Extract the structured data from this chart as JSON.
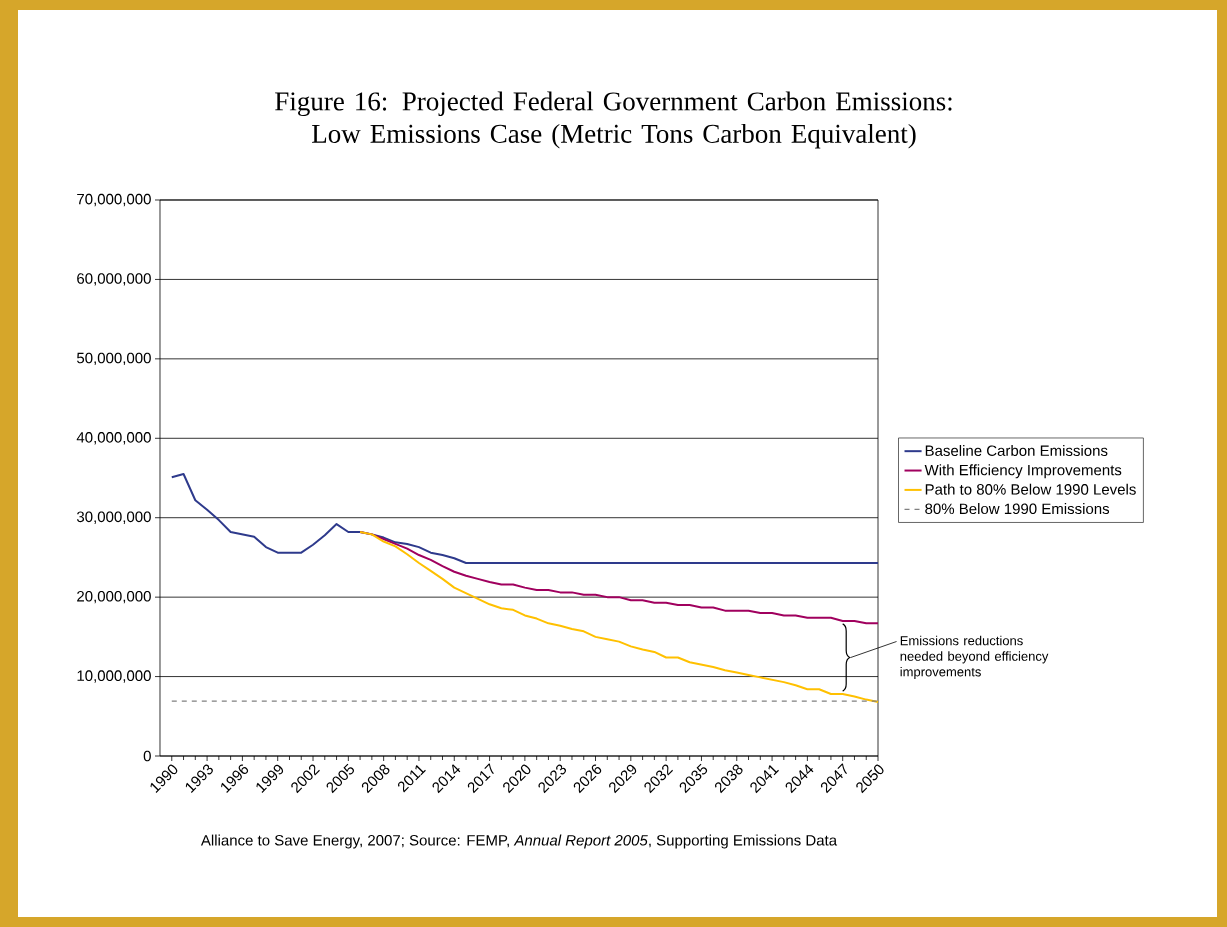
{
  "chart_data": {
    "type": "line",
    "title": "Figure 16: Projected Federal Government Carbon Emissions: Low Emissions Case (Metric Tons Carbon Equivalent)",
    "x": [
      1990,
      1991,
      1992,
      1993,
      1994,
      1995,
      1996,
      1997,
      1998,
      1999,
      2000,
      2001,
      2002,
      2003,
      2004,
      2005,
      2006,
      2007,
      2008,
      2009,
      2010,
      2011,
      2012,
      2013,
      2014,
      2015,
      2016,
      2017,
      2018,
      2019,
      2020,
      2021,
      2022,
      2023,
      2024,
      2025,
      2026,
      2027,
      2028,
      2029,
      2030,
      2031,
      2032,
      2033,
      2034,
      2035,
      2036,
      2037,
      2038,
      2039,
      2040,
      2041,
      2042,
      2043,
      2044,
      2045,
      2046,
      2047,
      2048,
      2049,
      2050
    ],
    "series": [
      {
        "name": "Baseline Carbon Emissions",
        "color": "#2e3a8c",
        "values": [
          35100000,
          35500000,
          32200000,
          31000000,
          29700000,
          28200000,
          27900000,
          27600000,
          26300000,
          25600000,
          25600000,
          25600000,
          26600000,
          27800000,
          29200000,
          28200000,
          28200000,
          27900000,
          27500000,
          26900000,
          26700000,
          26300000,
          25600000,
          25300000,
          24900000,
          24300000,
          24300000,
          24300000,
          24300000,
          24300000,
          24300000,
          24300000,
          24300000,
          24300000,
          24300000,
          24300000,
          24300000,
          24300000,
          24300000,
          24300000,
          24300000,
          24300000,
          24300000,
          24300000,
          24300000,
          24300000,
          24300000,
          24300000,
          24300000,
          24300000,
          24300000,
          24300000,
          24300000,
          24300000,
          24300000,
          24300000,
          24300000,
          24300000,
          24300000,
          24300000,
          24300000
        ]
      },
      {
        "name": "With Efficiency Improvements",
        "color": "#a0005e",
        "values": [
          null,
          null,
          null,
          null,
          null,
          null,
          null,
          null,
          null,
          null,
          null,
          null,
          null,
          null,
          null,
          null,
          28200000,
          27900000,
          27300000,
          26700000,
          26100000,
          25300000,
          24700000,
          23900000,
          23200000,
          22700000,
          22300000,
          21900000,
          21600000,
          21600000,
          21200000,
          20900000,
          20900000,
          20600000,
          20600000,
          20300000,
          20300000,
          20000000,
          20000000,
          19600000,
          19600000,
          19300000,
          19300000,
          19000000,
          19000000,
          18700000,
          18700000,
          18300000,
          18300000,
          18300000,
          18000000,
          18000000,
          17700000,
          17700000,
          17400000,
          17400000,
          17400000,
          17000000,
          17000000,
          16700000,
          16700000
        ]
      },
      {
        "name": "Path to 80% Below 1990 Levels",
        "color": "#ffc000",
        "values": [
          null,
          null,
          null,
          null,
          null,
          null,
          null,
          null,
          null,
          null,
          null,
          null,
          null,
          null,
          null,
          null,
          28200000,
          27900000,
          27000000,
          26400000,
          25400000,
          24300000,
          23300000,
          22300000,
          21200000,
          20500000,
          19800000,
          19100000,
          18600000,
          18400000,
          17700000,
          17300000,
          16700000,
          16400000,
          16000000,
          15700000,
          15000000,
          14700000,
          14400000,
          13800000,
          13400000,
          13100000,
          12400000,
          12400000,
          11800000,
          11500000,
          11200000,
          10800000,
          10500000,
          10200000,
          9900000,
          9600000,
          9300000,
          8900000,
          8400000,
          8400000,
          7800000,
          7800000,
          7500000,
          7100000,
          6800000
        ]
      },
      {
        "name": "80% Below 1990 Emissions",
        "color": "#808080",
        "line_style": "dashed",
        "x": [
          1990,
          2050
        ],
        "values": [
          6900000,
          6900000
        ]
      }
    ],
    "xlim": [
      1989,
      2050
    ],
    "xticks": [
      1990,
      1993,
      1996,
      1999,
      2002,
      2005,
      2008,
      2011,
      2014,
      2017,
      2020,
      2023,
      2026,
      2029,
      2032,
      2035,
      2038,
      2041,
      2044,
      2047,
      2050
    ],
    "ylim": [
      0,
      70000000
    ],
    "yticks": [
      0,
      {
        "value": 10000000,
        "label": "10,000,000"
      },
      {
        "value": 20000000,
        "label": "20,000,000"
      },
      {
        "value": 30000000,
        "label": "30,000,000"
      },
      {
        "value": 40000000,
        "label": "40,000,000"
      },
      {
        "value": 50000000,
        "label": "50,000,000"
      },
      {
        "value": 60000000,
        "label": "60,000,000"
      },
      {
        "value": 70000000,
        "label": "70,000,000"
      }
    ],
    "grid": "y",
    "legend": "right",
    "line_style": "solid",
    "marker": "none",
    "annotations": [
      "Emissions reductions needed beyond efficiency improvements",
      "Alliance to Save Energy, 2007; Source: FEMP, *Annual Report 2005*, Supporting Emissions Data"
    ]
  }
}
